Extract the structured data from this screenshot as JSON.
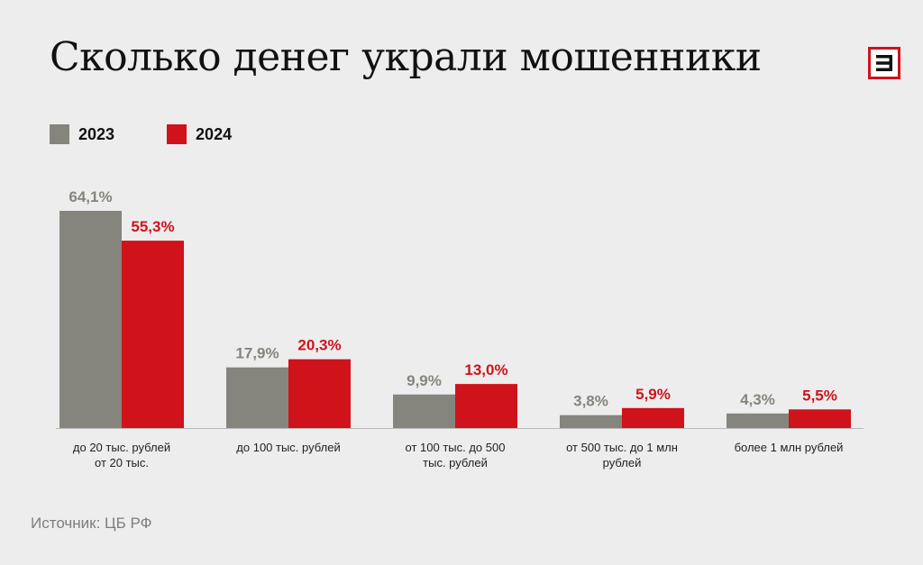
{
  "title": "Сколько денег украли мошенники",
  "source": "Источник: ЦБ РФ",
  "logo": {
    "icon": "e-logo-icon"
  },
  "colors": {
    "series_2023": "#85857e",
    "series_2024": "#d0121b",
    "background": "#ededed"
  },
  "chart_data": {
    "type": "bar",
    "legend": "top-left",
    "grid": false,
    "categories": [
      [
        "до 20 тыс. рублей",
        "от 20 тыс."
      ],
      [
        "до 100 тыс. рублей"
      ],
      [
        "от 100 тыс. до 500",
        "тыс. рублей"
      ],
      [
        "от 500 тыс. до 1 млн",
        "рублей"
      ],
      [
        "более 1 млн рублей"
      ]
    ],
    "series": [
      {
        "name": "2023",
        "values": [
          64.1,
          17.9,
          9.9,
          3.8,
          4.3
        ],
        "labels": [
          "64,1%",
          "17,9%",
          "9,9%",
          "3,8%",
          "4,3%"
        ]
      },
      {
        "name": "2024",
        "values": [
          55.3,
          20.3,
          13.0,
          5.9,
          5.5
        ],
        "labels": [
          "55,3%",
          "20,3%",
          "13,0%",
          "5,9%",
          "5,5%"
        ]
      }
    ],
    "ylim": [
      0,
      64.1
    ]
  }
}
